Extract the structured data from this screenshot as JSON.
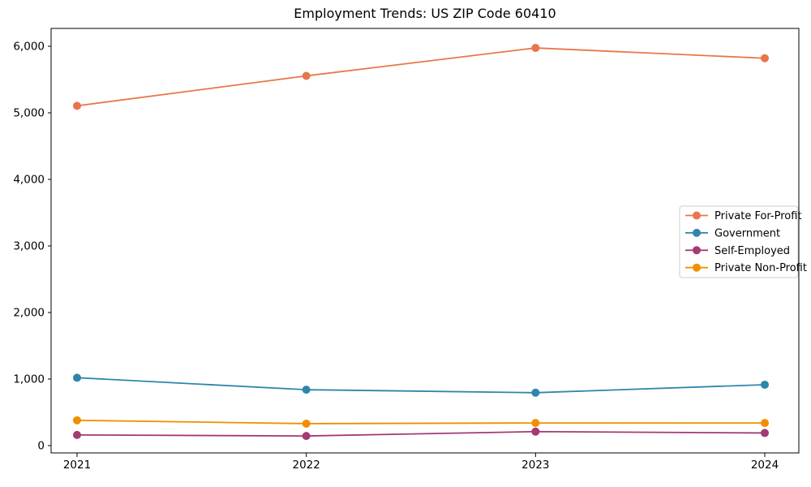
{
  "chart_data": {
    "type": "line",
    "title": "Employment Trends: US ZIP Code 60410",
    "x": [
      2021,
      2022,
      2023,
      2024
    ],
    "x_tick_labels": [
      "2021",
      "2022",
      "2023",
      "2024"
    ],
    "y_ticks": [
      0,
      1000,
      2000,
      3000,
      4000,
      5000,
      6000
    ],
    "y_tick_labels": [
      "0",
      "1,000",
      "2,000",
      "3,000",
      "4,000",
      "5,000",
      "6,000"
    ],
    "ylim": [
      0,
      6000
    ],
    "grid": false,
    "legend_position": "center-right",
    "series": [
      {
        "name": "Private For-Profit",
        "color": "#E8764B",
        "values": [
          5105,
          5555,
          5975,
          5820
        ]
      },
      {
        "name": "Government",
        "color": "#2E86AB",
        "values": [
          1020,
          840,
          795,
          915
        ]
      },
      {
        "name": "Self-Employed",
        "color": "#A23B72",
        "values": [
          160,
          145,
          210,
          190
        ]
      },
      {
        "name": "Private Non-Profit",
        "color": "#F18F01",
        "values": [
          380,
          330,
          340,
          340
        ]
      }
    ],
    "axis_color": "#000000",
    "legend_border_color": "#cccccc",
    "background_color": "#ffffff"
  }
}
